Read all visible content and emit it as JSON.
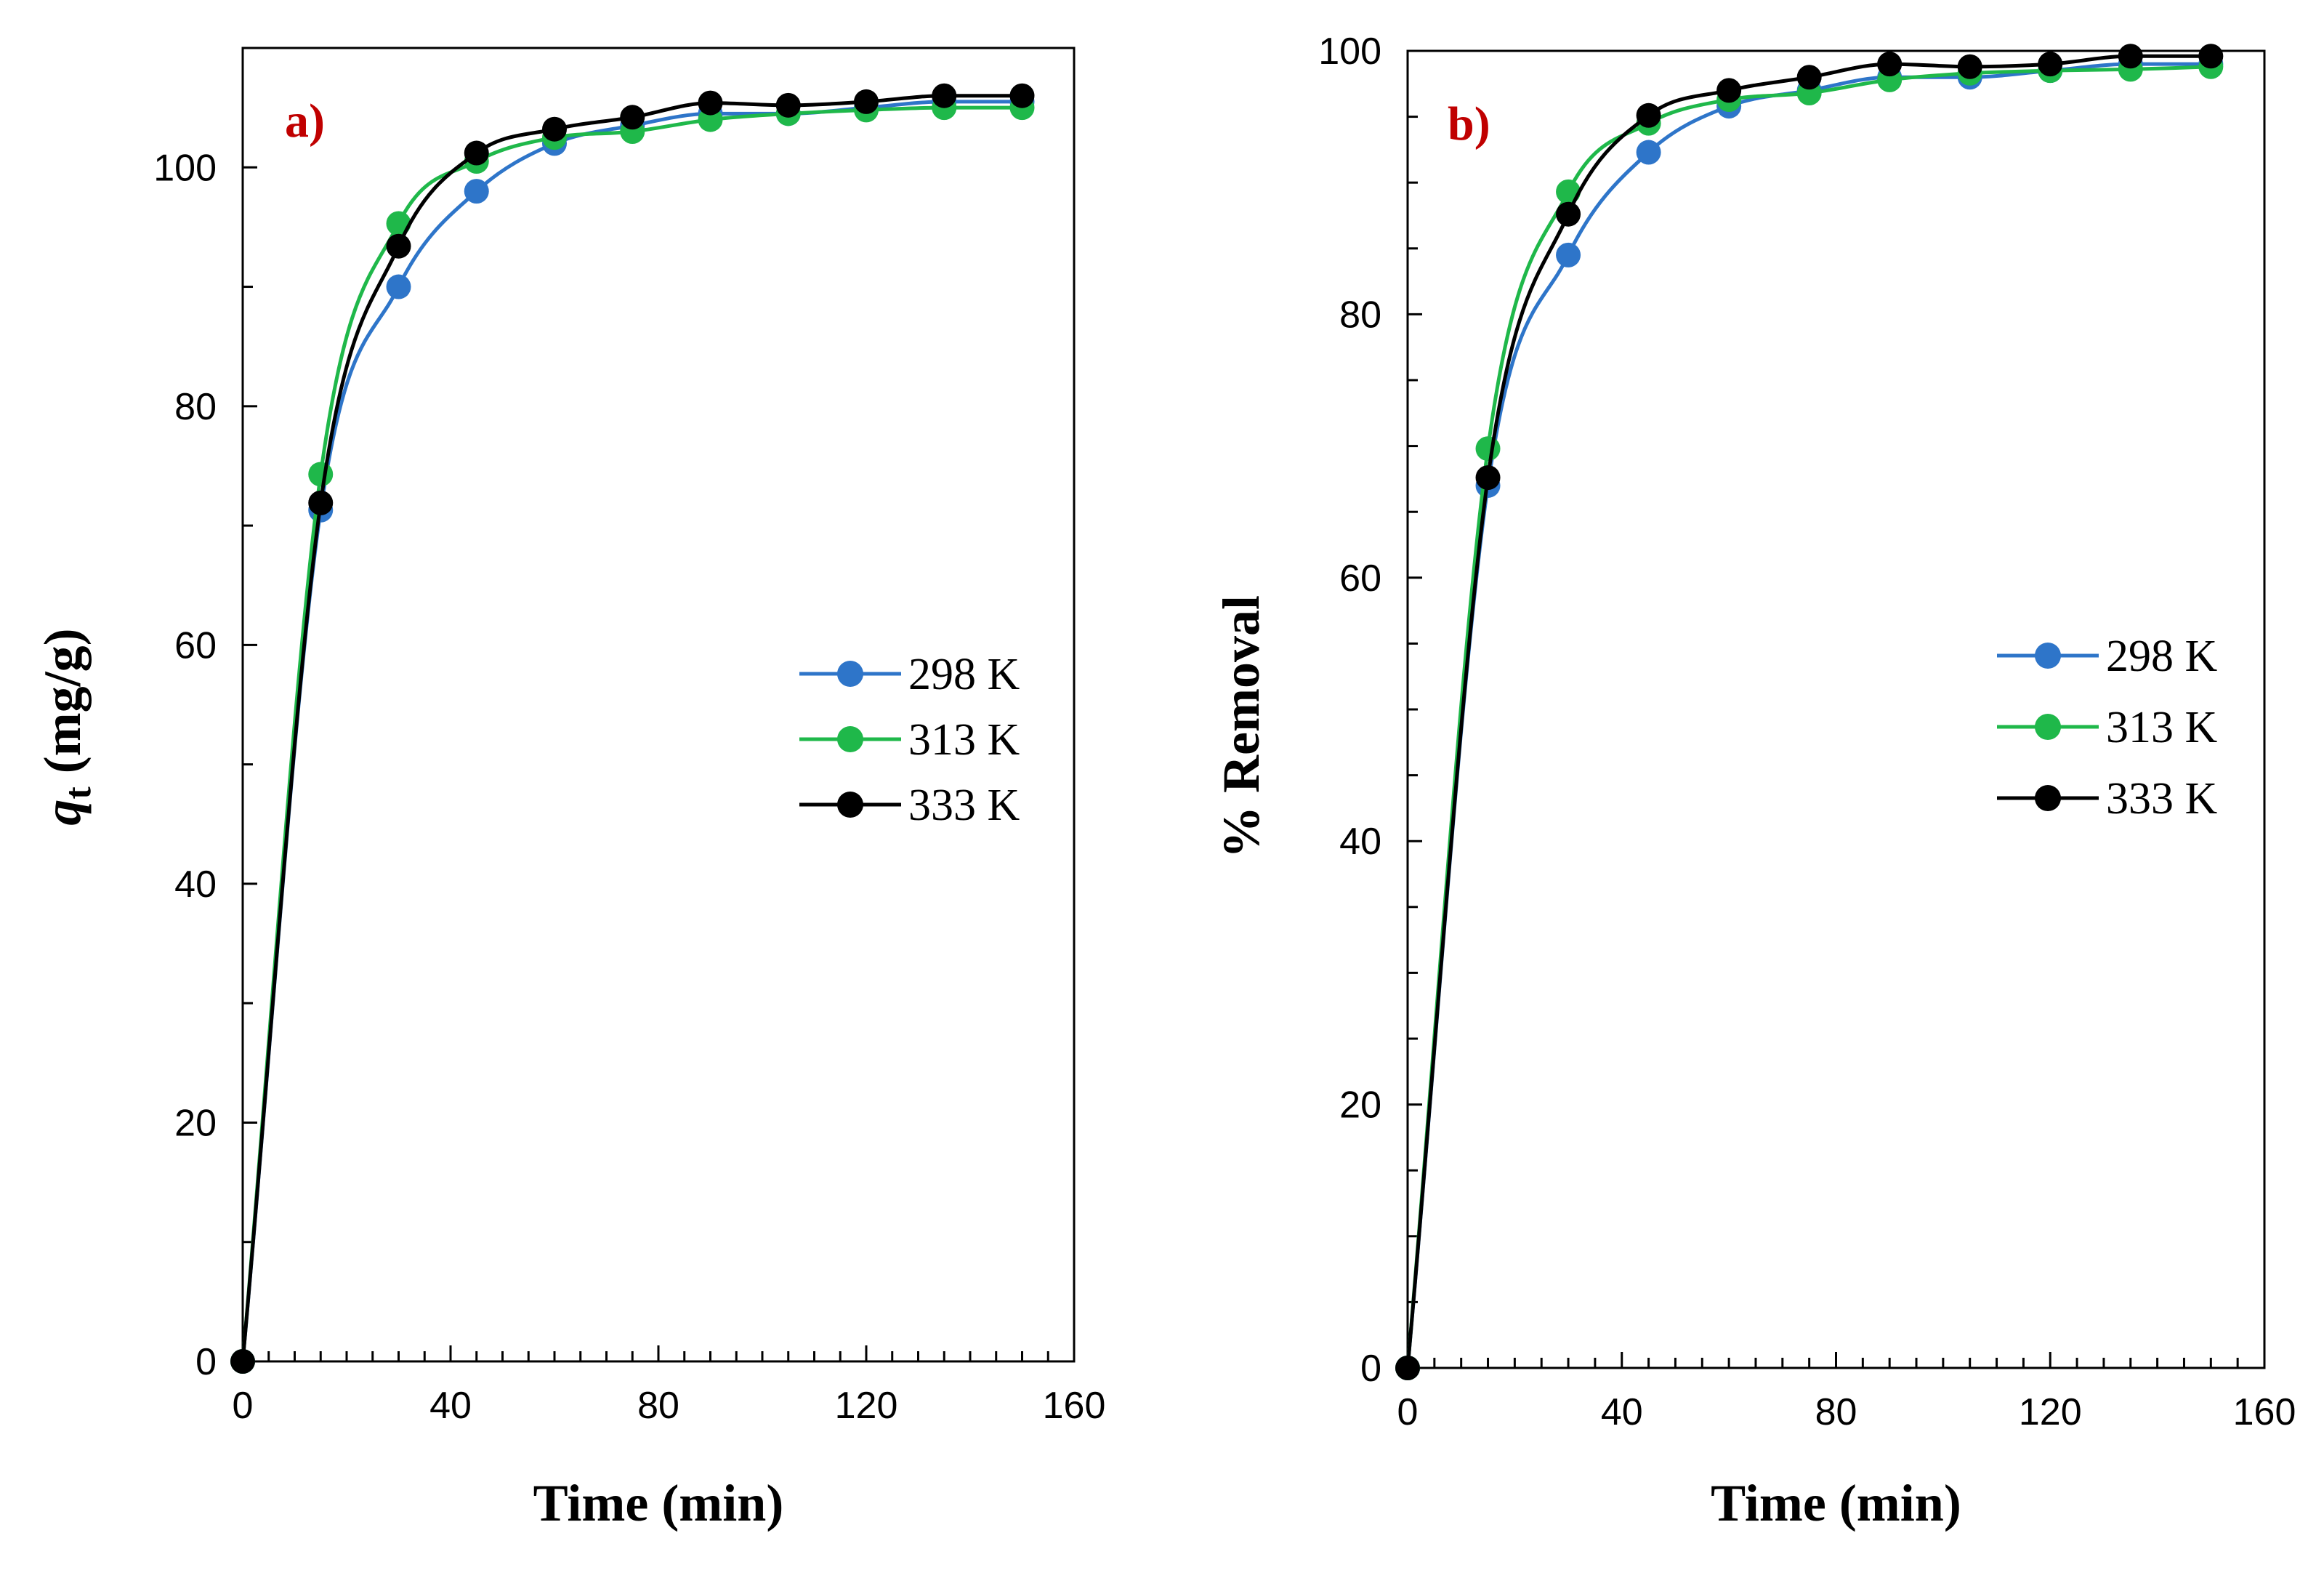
{
  "chart_data": [
    {
      "type": "line",
      "panel_label": "a)",
      "title": "",
      "xlabel": "Time (min)",
      "ylabel_main": "q",
      "ylabel_sub": "t",
      "ylabel_rest": " (mg/g)",
      "xlim": [
        0,
        160
      ],
      "ylim": [
        0,
        110
      ],
      "xticks": [
        0,
        40,
        80,
        120,
        160
      ],
      "yticks": [
        0,
        20,
        40,
        60,
        80,
        100
      ],
      "x_minor_step": 5,
      "y_minor_step": 10,
      "x": [
        0,
        15,
        30,
        45,
        60,
        75,
        90,
        105,
        120,
        135,
        150
      ],
      "series": [
        {
          "name": "298 K",
          "color": "#2e75c9",
          "values": [
            0,
            71.3,
            90.0,
            98.0,
            102.0,
            103.5,
            104.5,
            104.5,
            105.0,
            105.5,
            105.5
          ]
        },
        {
          "name": "313 K",
          "color": "#1fb84a",
          "values": [
            0,
            74.3,
            95.3,
            100.5,
            102.5,
            103.0,
            104.0,
            104.5,
            104.8,
            105.0,
            105.0
          ]
        },
        {
          "name": "333 K",
          "color": "#000000",
          "values": [
            0,
            71.9,
            93.4,
            101.2,
            103.2,
            104.2,
            105.4,
            105.2,
            105.5,
            106.0,
            106.0
          ]
        }
      ],
      "legend_position": "right-middle",
      "grid": false
    },
    {
      "type": "line",
      "panel_label": "b)",
      "title": "",
      "xlabel": "Time (min)",
      "ylabel_main": "% Removal",
      "ylabel_sub": "",
      "ylabel_rest": "",
      "xlim": [
        0,
        160
      ],
      "ylim": [
        0,
        100
      ],
      "xticks": [
        0,
        40,
        80,
        120,
        160
      ],
      "yticks": [
        0,
        20,
        40,
        60,
        80,
        100
      ],
      "x_minor_step": 5,
      "y_minor_step": 5,
      "x": [
        0,
        15,
        30,
        45,
        60,
        75,
        90,
        105,
        120,
        135,
        150
      ],
      "series": [
        {
          "name": "298 K",
          "color": "#2e75c9",
          "values": [
            0,
            67.0,
            84.5,
            92.3,
            95.8,
            97.0,
            98.0,
            98.0,
            98.5,
            99.0,
            99.0
          ]
        },
        {
          "name": "313 K",
          "color": "#1fb84a",
          "values": [
            0,
            69.8,
            89.3,
            94.5,
            96.3,
            96.8,
            97.8,
            98.3,
            98.5,
            98.6,
            98.8
          ]
        },
        {
          "name": "333 K",
          "color": "#000000",
          "values": [
            0,
            67.6,
            87.6,
            95.1,
            97.0,
            98.0,
            99.0,
            98.8,
            99.0,
            99.6,
            99.6
          ]
        }
      ],
      "legend_position": "right-middle",
      "grid": false
    }
  ]
}
